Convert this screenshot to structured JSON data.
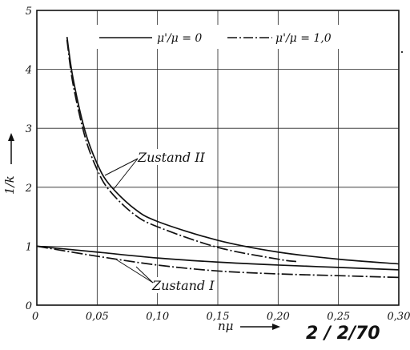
{
  "chart_data": {
    "type": "line",
    "xlabel": "nμ",
    "ylabel": "1/k",
    "xlim": [
      0,
      0.3
    ],
    "ylim": [
      0,
      5
    ],
    "x_ticks": [
      "0",
      "0,05",
      "0,10",
      "0,15",
      "0,20",
      "0,25",
      "0,30"
    ],
    "y_ticks": [
      "0",
      "1",
      "2",
      "3",
      "4",
      "5"
    ],
    "grid": true,
    "legend_position": "top",
    "legend": [
      {
        "label": "μ'/μ = 0",
        "style": "solid"
      },
      {
        "label": "μ'/μ = 1,0",
        "style": "dash-dot"
      }
    ],
    "series": [
      {
        "legend_index": 0,
        "group": "Zustand II",
        "style": "solid",
        "x": [
          0.025,
          0.03,
          0.04,
          0.05,
          0.06,
          0.08,
          0.1,
          0.15,
          0.2,
          0.25,
          0.3
        ],
        "y": [
          4.55,
          3.85,
          2.95,
          2.4,
          2.05,
          1.65,
          1.42,
          1.1,
          0.9,
          0.78,
          0.7
        ]
      },
      {
        "legend_index": 1,
        "group": "Zustand II",
        "style": "dash-dot",
        "x": [
          0.025,
          0.03,
          0.04,
          0.05,
          0.06,
          0.08,
          0.1,
          0.15,
          0.2,
          0.215
        ],
        "y": [
          4.5,
          3.75,
          2.85,
          2.3,
          1.95,
          1.55,
          1.33,
          0.98,
          0.78,
          0.74
        ]
      },
      {
        "legend_index": 0,
        "group": "Zustand I",
        "style": "solid",
        "x": [
          0,
          0.05,
          0.1,
          0.15,
          0.2,
          0.25,
          0.3
        ],
        "y": [
          1.0,
          0.9,
          0.8,
          0.73,
          0.68,
          0.64,
          0.6
        ]
      },
      {
        "legend_index": 1,
        "group": "Zustand I",
        "style": "dash-dot",
        "x": [
          0,
          0.05,
          0.1,
          0.15,
          0.2,
          0.25,
          0.3
        ],
        "y": [
          1.0,
          0.83,
          0.68,
          0.58,
          0.53,
          0.5,
          0.47
        ]
      }
    ],
    "annotations": [
      "Zustand II",
      "Zustand I"
    ]
  },
  "handwritten_note": "2 / 2/70"
}
